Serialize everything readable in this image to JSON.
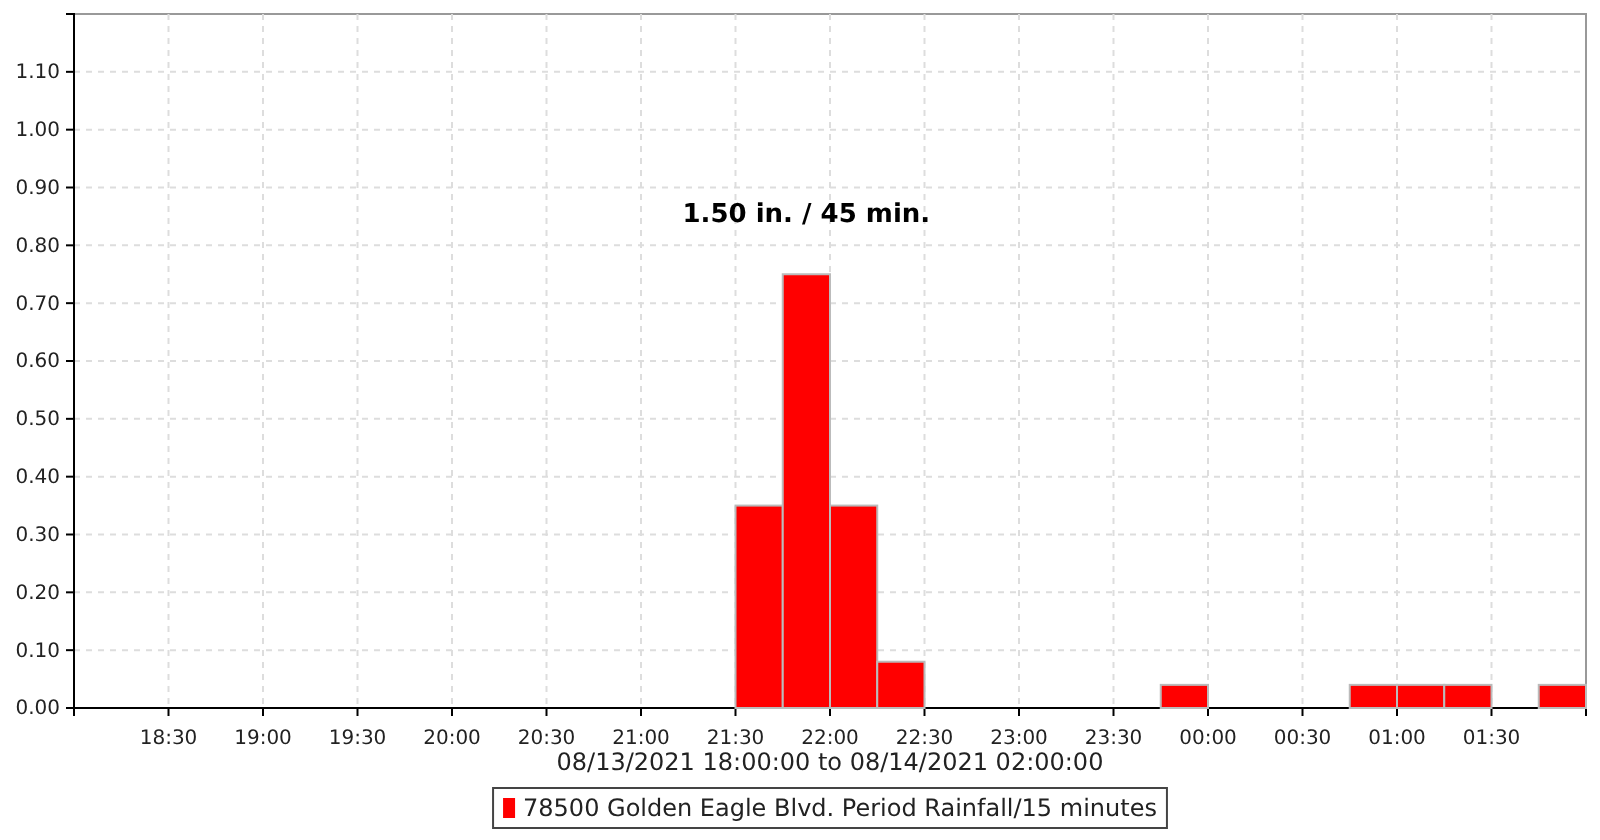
{
  "chart_data": {
    "type": "histogram",
    "xlabel": "08/13/2021 18:00:00 to 08/14/2021 02:00:00",
    "annotations": [
      "1.50 in. / 45 min."
    ],
    "bins": [
      "2021-08-13T18:00",
      "2021-08-13T18:15",
      "2021-08-13T18:30",
      "2021-08-13T18:45",
      "2021-08-13T19:00",
      "2021-08-13T19:15",
      "2021-08-13T19:30",
      "2021-08-13T19:45",
      "2021-08-13T20:00",
      "2021-08-13T20:15",
      "2021-08-13T20:30",
      "2021-08-13T20:45",
      "2021-08-13T21:00",
      "2021-08-13T21:15",
      "2021-08-13T21:30",
      "2021-08-13T21:45",
      "2021-08-13T22:00",
      "2021-08-13T22:15",
      "2021-08-13T22:30",
      "2021-08-13T22:45",
      "2021-08-13T23:00",
      "2021-08-13T23:15",
      "2021-08-13T23:30",
      "2021-08-13T23:45",
      "2021-08-14T00:00",
      "2021-08-14T00:15",
      "2021-08-14T00:30",
      "2021-08-14T00:45",
      "2021-08-14T01:00",
      "2021-08-14T01:15",
      "2021-08-14T01:30",
      "2021-08-14T01:45",
      "2021-08-14T02:00"
    ],
    "series": [
      {
        "name": "78500 Golden Eagle Blvd. Period Rainfall/15 minutes",
        "color": "#ff0000",
        "values": [
          0,
          0,
          0,
          0,
          0,
          0,
          0,
          0,
          0,
          0,
          0,
          0,
          0,
          0,
          0.35,
          0.75,
          0.35,
          0.08,
          0,
          0,
          0,
          0,
          0,
          0.04,
          0,
          0,
          0,
          0.04,
          0.04,
          0.04,
          0,
          0.04
        ]
      }
    ],
    "xlim": [
      "2021-08-13T18:00",
      "2021-08-14T02:00"
    ],
    "xticks": [
      {
        "value": "2021-08-13T18:30",
        "label": "18:30"
      },
      {
        "value": "2021-08-13T19:00",
        "label": "19:00"
      },
      {
        "value": "2021-08-13T19:30",
        "label": "19:30"
      },
      {
        "value": "2021-08-13T20:00",
        "label": "20:00"
      },
      {
        "value": "2021-08-13T20:30",
        "label": "20:30"
      },
      {
        "value": "2021-08-13T21:00",
        "label": "21:00"
      },
      {
        "value": "2021-08-13T21:30",
        "label": "21:30"
      },
      {
        "value": "2021-08-13T22:00",
        "label": "22:00"
      },
      {
        "value": "2021-08-13T22:30",
        "label": "22:30"
      },
      {
        "value": "2021-08-13T23:00",
        "label": "23:00"
      },
      {
        "value": "2021-08-13T23:30",
        "label": "23:30"
      },
      {
        "value": "2021-08-14T00:00",
        "label": "00:00"
      },
      {
        "value": "2021-08-14T00:30",
        "label": "00:30"
      },
      {
        "value": "2021-08-14T01:00",
        "label": "01:00"
      },
      {
        "value": "2021-08-14T01:30",
        "label": "01:30"
      }
    ],
    "ylim": [
      0,
      1.2
    ],
    "yticks": [
      {
        "value": 0,
        "label": "0.00"
      },
      {
        "value": 0.1,
        "label": "0.10"
      },
      {
        "value": 0.2,
        "label": "0.20"
      },
      {
        "value": 0.3,
        "label": "0.30"
      },
      {
        "value": 0.4,
        "label": "0.40"
      },
      {
        "value": 0.5,
        "label": "0.50"
      },
      {
        "value": 0.6,
        "label": "0.60"
      },
      {
        "value": 0.7,
        "label": "0.70"
      },
      {
        "value": 0.8,
        "label": "0.80"
      },
      {
        "value": 0.9,
        "label": "0.90"
      },
      {
        "value": 1,
        "label": "1.00"
      },
      {
        "value": 1.1,
        "label": "1.10"
      }
    ],
    "grid": true,
    "legend": "bottom"
  }
}
